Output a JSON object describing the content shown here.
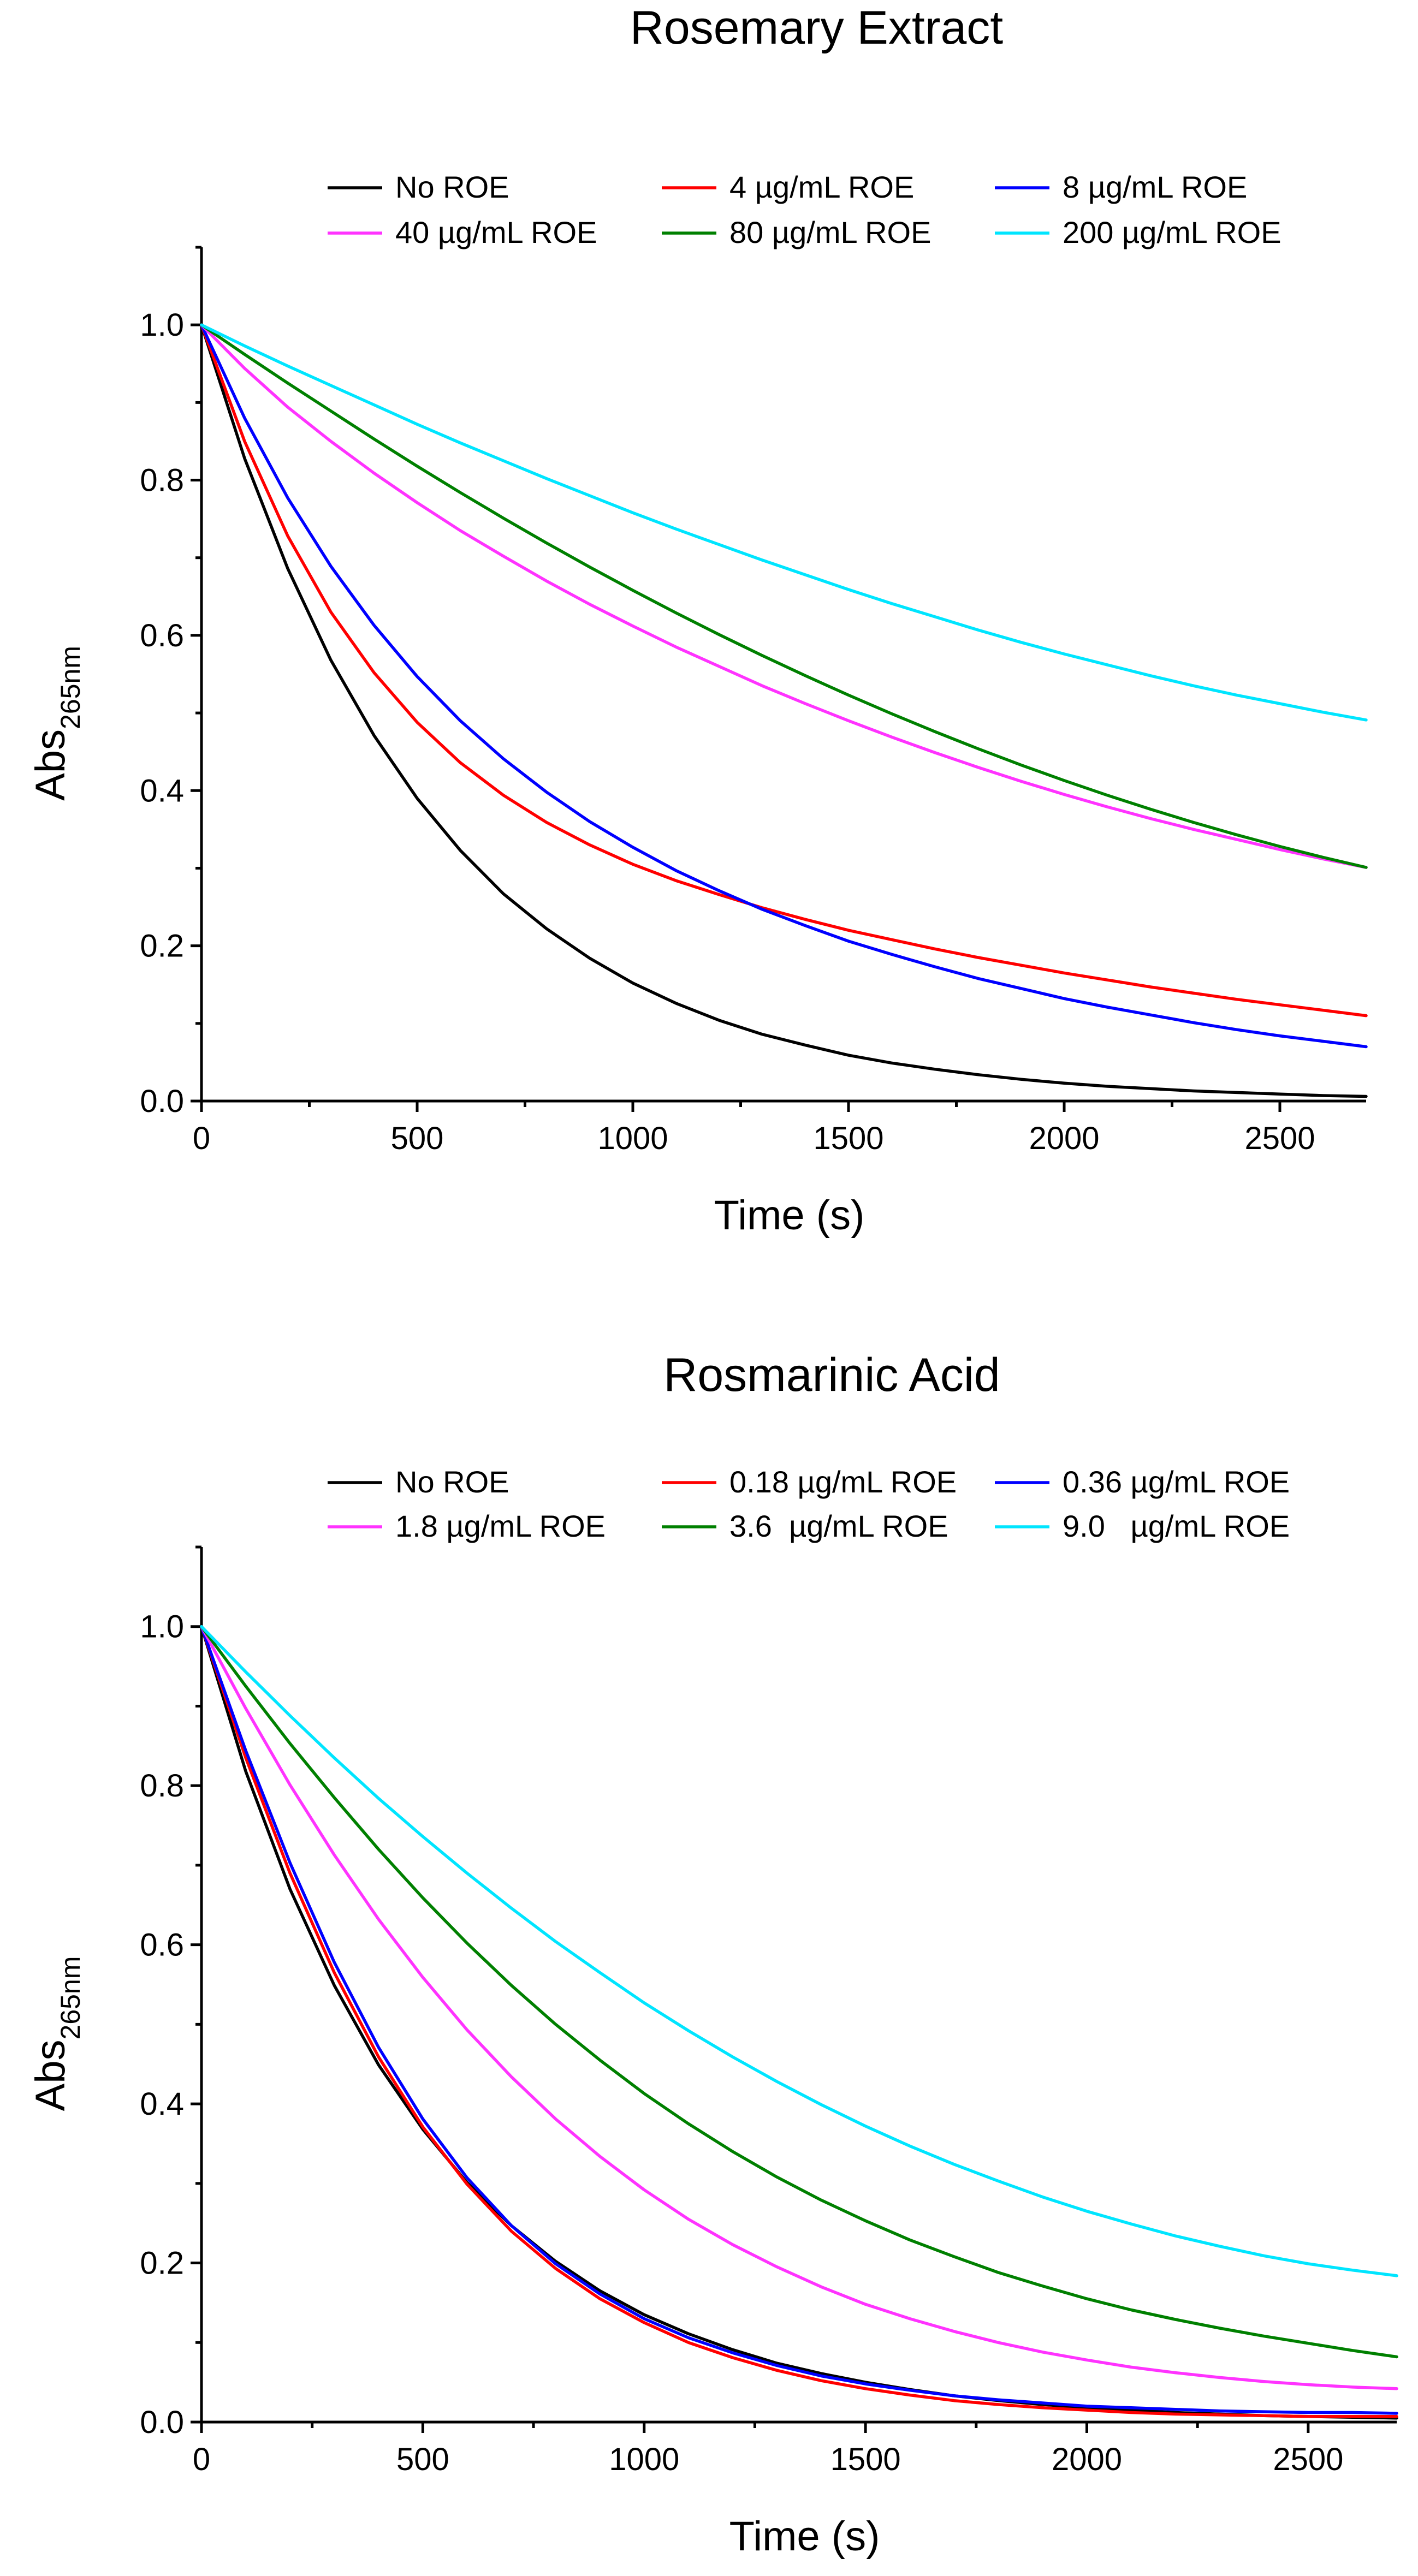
{
  "chart_data": [
    {
      "type": "line",
      "title": "Rosemary Extract",
      "xlabel": "Time (s)",
      "ylabel": "Abs",
      "ylabel_subscript": "265nm",
      "xlim": [
        0,
        2700
      ],
      "ylim": [
        0,
        1.1
      ],
      "xticks": [
        0,
        500,
        1000,
        1500,
        2000,
        2500
      ],
      "yticks": [
        0.0,
        0.2,
        0.4,
        0.6,
        0.8,
        1.0
      ],
      "xtick_labels": [
        "0",
        "500",
        "1000",
        "1500",
        "2000",
        "2500"
      ],
      "ytick_labels": [
        "0.0",
        "0.2",
        "0.4",
        "0.6",
        "0.8",
        "1.0"
      ],
      "legend_position": "top",
      "grid": false,
      "x": [
        0,
        100,
        200,
        300,
        400,
        500,
        600,
        700,
        800,
        900,
        1000,
        1100,
        1200,
        1300,
        1400,
        1500,
        1600,
        1700,
        1800,
        1900,
        2000,
        2100,
        2200,
        2300,
        2400,
        2500,
        2600,
        2700
      ],
      "series": [
        {
          "name": "No ROE",
          "color": "#000000",
          "values": [
            1.0,
            0.828,
            0.686,
            0.568,
            0.471,
            0.39,
            0.323,
            0.267,
            0.222,
            0.184,
            0.152,
            0.126,
            0.104,
            0.086,
            0.072,
            0.059,
            0.049,
            0.041,
            0.034,
            0.028,
            0.023,
            0.019,
            0.016,
            0.013,
            0.011,
            0.009,
            0.007,
            0.006
          ]
        },
        {
          "name": "4 µg/mL ROE",
          "color": "#ff0000",
          "values": [
            1.0,
            0.85,
            0.728,
            0.63,
            0.552,
            0.488,
            0.436,
            0.394,
            0.359,
            0.33,
            0.305,
            0.284,
            0.266,
            0.249,
            0.234,
            0.22,
            0.208,
            0.196,
            0.185,
            0.175,
            0.165,
            0.156,
            0.147,
            0.139,
            0.131,
            0.124,
            0.117,
            0.11
          ]
        },
        {
          "name": "8 µg/mL ROE",
          "color": "#0000ff",
          "values": [
            1.0,
            0.88,
            0.777,
            0.689,
            0.613,
            0.547,
            0.49,
            0.441,
            0.398,
            0.36,
            0.327,
            0.297,
            0.271,
            0.247,
            0.226,
            0.206,
            0.189,
            0.173,
            0.158,
            0.145,
            0.132,
            0.121,
            0.111,
            0.101,
            0.092,
            0.084,
            0.077,
            0.07
          ]
        },
        {
          "name": "40 µg/mL ROE",
          "color": "#ff33ff",
          "values": [
            1.0,
            0.944,
            0.894,
            0.85,
            0.809,
            0.771,
            0.735,
            0.702,
            0.67,
            0.64,
            0.612,
            0.585,
            0.56,
            0.535,
            0.512,
            0.49,
            0.469,
            0.449,
            0.43,
            0.412,
            0.395,
            0.379,
            0.364,
            0.35,
            0.337,
            0.324,
            0.312,
            0.301
          ]
        },
        {
          "name": "80 µg/mL ROE",
          "color": "#008000",
          "values": [
            1.0,
            0.962,
            0.925,
            0.889,
            0.853,
            0.818,
            0.784,
            0.751,
            0.719,
            0.688,
            0.658,
            0.629,
            0.601,
            0.574,
            0.548,
            0.523,
            0.499,
            0.476,
            0.454,
            0.433,
            0.413,
            0.394,
            0.376,
            0.359,
            0.343,
            0.328,
            0.314,
            0.301
          ]
        },
        {
          "name": "200 µg/mL ROE",
          "color": "#00e5ff",
          "values": [
            1.0,
            0.973,
            0.947,
            0.922,
            0.897,
            0.872,
            0.848,
            0.825,
            0.802,
            0.78,
            0.758,
            0.737,
            0.717,
            0.697,
            0.678,
            0.659,
            0.641,
            0.624,
            0.607,
            0.591,
            0.576,
            0.562,
            0.548,
            0.535,
            0.523,
            0.512,
            0.501,
            0.491
          ]
        }
      ]
    },
    {
      "type": "line",
      "title": "Rosmarinic Acid",
      "xlabel": "Time (s)",
      "ylabel": "Abs",
      "ylabel_subscript": "265nm",
      "xlim": [
        0,
        2700
      ],
      "ylim": [
        0,
        1.1
      ],
      "xticks": [
        0,
        500,
        1000,
        1500,
        2000,
        2500
      ],
      "yticks": [
        0.0,
        0.2,
        0.4,
        0.6,
        0.8,
        1.0
      ],
      "xtick_labels": [
        "0",
        "500",
        "1000",
        "1500",
        "2000",
        "2500"
      ],
      "ytick_labels": [
        "0.0",
        "0.2",
        "0.4",
        "0.6",
        "0.8",
        "1.0"
      ],
      "legend_position": "top",
      "grid": false,
      "x": [
        0,
        100,
        200,
        300,
        400,
        500,
        600,
        700,
        800,
        900,
        1000,
        1100,
        1200,
        1300,
        1400,
        1500,
        1600,
        1700,
        1800,
        1900,
        2000,
        2100,
        2200,
        2300,
        2400,
        2500,
        2600,
        2700
      ],
      "series": [
        {
          "name": "No ROE",
          "color": "#000000",
          "values": [
            1.0,
            0.818,
            0.67,
            0.549,
            0.449,
            0.368,
            0.301,
            0.247,
            0.202,
            0.165,
            0.135,
            0.111,
            0.091,
            0.074,
            0.061,
            0.05,
            0.041,
            0.033,
            0.027,
            0.022,
            0.018,
            0.015,
            0.012,
            0.01,
            0.008,
            0.007,
            0.006,
            0.005
          ]
        },
        {
          "name": "0.18 µg/mL ROE",
          "color": "#ff0000",
          "values": [
            1.0,
            0.835,
            0.69,
            0.565,
            0.459,
            0.371,
            0.299,
            0.24,
            0.193,
            0.155,
            0.125,
            0.1,
            0.081,
            0.065,
            0.052,
            0.042,
            0.034,
            0.027,
            0.022,
            0.018,
            0.015,
            0.012,
            0.01,
            0.009,
            0.008,
            0.007,
            0.007,
            0.007
          ]
        },
        {
          "name": "0.36 µg/mL ROE",
          "color": "#0000ff",
          "values": [
            1.0,
            0.844,
            0.703,
            0.578,
            0.471,
            0.381,
            0.307,
            0.247,
            0.199,
            0.161,
            0.13,
            0.106,
            0.087,
            0.071,
            0.058,
            0.048,
            0.04,
            0.033,
            0.028,
            0.024,
            0.02,
            0.018,
            0.016,
            0.014,
            0.013,
            0.012,
            0.012,
            0.011
          ]
        },
        {
          "name": "1.8 µg/mL ROE",
          "color": "#ff33ff",
          "values": [
            1.0,
            0.897,
            0.801,
            0.713,
            0.632,
            0.559,
            0.493,
            0.434,
            0.381,
            0.334,
            0.292,
            0.255,
            0.223,
            0.195,
            0.17,
            0.148,
            0.13,
            0.114,
            0.1,
            0.088,
            0.078,
            0.069,
            0.062,
            0.056,
            0.051,
            0.047,
            0.044,
            0.042
          ]
        },
        {
          "name": "3.6  µg/mL ROE",
          "color": "#008000",
          "values": [
            1.0,
            0.925,
            0.853,
            0.785,
            0.72,
            0.659,
            0.602,
            0.549,
            0.5,
            0.455,
            0.413,
            0.375,
            0.34,
            0.308,
            0.279,
            0.253,
            0.229,
            0.208,
            0.188,
            0.171,
            0.155,
            0.141,
            0.129,
            0.118,
            0.108,
            0.099,
            0.09,
            0.082
          ]
        },
        {
          "name": "9.0   µg/mL ROE",
          "color": "#00e5ff",
          "values": [
            1.0,
            0.943,
            0.888,
            0.835,
            0.784,
            0.736,
            0.69,
            0.646,
            0.604,
            0.565,
            0.527,
            0.492,
            0.459,
            0.428,
            0.399,
            0.372,
            0.347,
            0.324,
            0.303,
            0.283,
            0.265,
            0.249,
            0.234,
            0.221,
            0.209,
            0.199,
            0.191,
            0.184
          ]
        }
      ]
    }
  ]
}
